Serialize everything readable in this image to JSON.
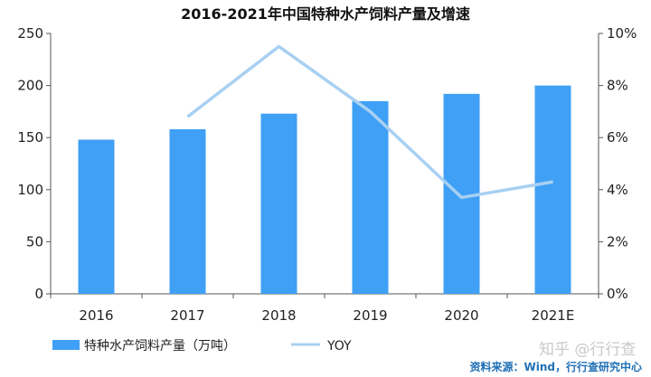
{
  "chart_data": {
    "type": "bar",
    "title": "2016-2021年中国特种水产饲料产量及增速",
    "categories": [
      "2016",
      "2017",
      "2018",
      "2019",
      "2020",
      "2021E"
    ],
    "series": [
      {
        "name": "特种水产饲料产量（万吨）",
        "type": "bar",
        "axis": "left",
        "values": [
          148,
          158,
          173,
          185,
          192,
          200
        ]
      },
      {
        "name": "YOY",
        "type": "line",
        "axis": "right",
        "values": [
          null,
          6.8,
          9.5,
          7.0,
          3.7,
          4.3
        ]
      }
    ],
    "y_left": {
      "min": 0,
      "max": 250,
      "ticks": [
        0,
        50,
        100,
        150,
        200,
        250
      ]
    },
    "y_right": {
      "min": 0,
      "max": 10,
      "ticks": [
        "0%",
        "2%",
        "4%",
        "6%",
        "8%",
        "10%"
      ]
    },
    "grid": false,
    "legend": "bottom-left"
  },
  "colors": {
    "bar": "#3fa0f5",
    "line": "#a8d0f2",
    "axis": "#555555"
  },
  "source": "资料来源：Wind，行行查研究中心",
  "watermark": "知乎 @行行查"
}
